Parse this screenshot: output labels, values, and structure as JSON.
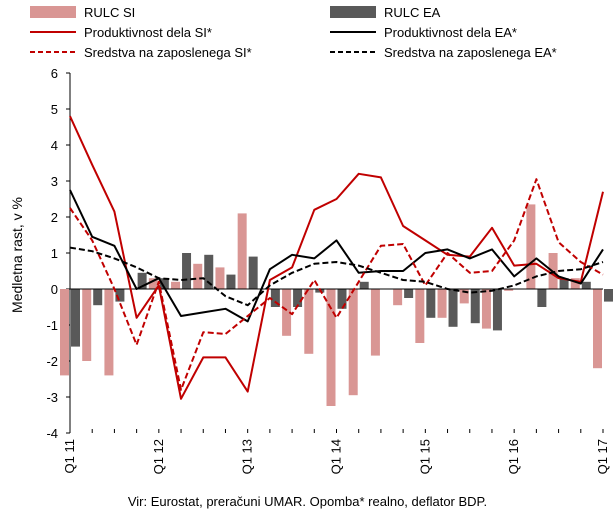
{
  "chart_data": {
    "type": "bar",
    "ylabel": "Medletna rast, v %",
    "ylim": [
      -4,
      6
    ],
    "yticks": [
      -4,
      -3,
      -2,
      -1,
      0,
      1,
      2,
      3,
      4,
      5,
      6
    ],
    "x_tick_labels": [
      "Q1 11",
      "Q1 12",
      "Q1 13",
      "Q1 14",
      "Q1 15",
      "Q1 16",
      "Q1 17"
    ],
    "categories": [
      "Q1 11",
      "Q2 11",
      "Q3 11",
      "Q4 11",
      "Q1 12",
      "Q2 12",
      "Q3 12",
      "Q4 12",
      "Q1 13",
      "Q2 13",
      "Q3 13",
      "Q4 13",
      "Q1 14",
      "Q2 14",
      "Q3 14",
      "Q4 14",
      "Q1 15",
      "Q2 15",
      "Q3 15",
      "Q4 15",
      "Q1 16",
      "Q2 16",
      "Q3 16",
      "Q4 16",
      "Q1 17"
    ],
    "series": [
      {
        "name": "RULC SI",
        "kind": "bar",
        "color": "#d99694",
        "values": [
          -2.4,
          -2.0,
          -2.4,
          0.0,
          0.3,
          0.2,
          0.7,
          0.6,
          2.1,
          0.0,
          -1.3,
          -1.8,
          -3.25,
          -2.95,
          -1.85,
          -0.45,
          -1.5,
          -0.8,
          -0.4,
          -1.1,
          -0.05,
          2.35,
          1.0,
          0.3,
          -2.2
        ]
      },
      {
        "name": "RULC EA",
        "kind": "bar",
        "color": "#595959",
        "values": [
          -1.6,
          -0.45,
          -0.35,
          0.45,
          0.3,
          1.0,
          0.95,
          0.4,
          0.9,
          -0.5,
          -0.5,
          -0.1,
          -0.55,
          0.2,
          0.0,
          -0.25,
          -0.8,
          -1.05,
          -0.95,
          -1.15,
          0.0,
          -0.5,
          0.3,
          0.2,
          -0.35
        ]
      },
      {
        "name": "Produktivnost dela SI*",
        "kind": "line",
        "color": "#c00000",
        "dash": "solid",
        "values": [
          4.8,
          3.45,
          2.15,
          -0.8,
          0.1,
          -3.05,
          -1.9,
          -1.9,
          -2.85,
          0.25,
          0.6,
          2.2,
          2.5,
          3.2,
          3.1,
          1.75,
          1.35,
          0.95,
          0.9,
          1.7,
          0.65,
          0.7,
          0.3,
          0.2,
          2.7
        ]
      },
      {
        "name": "Produktivnost dela EA*",
        "kind": "line",
        "color": "#000000",
        "dash": "solid",
        "values": [
          2.75,
          1.45,
          1.2,
          0.0,
          0.3,
          -0.75,
          -0.65,
          -0.55,
          -0.9,
          0.55,
          0.95,
          0.85,
          1.35,
          0.45,
          0.5,
          0.5,
          1.0,
          1.1,
          0.85,
          1.1,
          0.35,
          0.85,
          0.35,
          0.15,
          1.1
        ]
      },
      {
        "name": "Sredstva na zaposlenega SI*",
        "kind": "line",
        "color": "#c00000",
        "dash": "dashed",
        "values": [
          2.25,
          1.35,
          0.0,
          -1.55,
          0.2,
          -2.8,
          -1.2,
          -1.25,
          -0.75,
          -0.25,
          -0.7,
          0.25,
          -0.8,
          0.2,
          1.2,
          1.25,
          0.1,
          1.0,
          0.45,
          0.5,
          1.35,
          3.05,
          1.3,
          0.75,
          0.4
        ]
      },
      {
        "name": "Sredstva na zaposlenega EA*",
        "kind": "line",
        "color": "#000000",
        "dash": "dashed",
        "values": [
          1.15,
          1.05,
          0.85,
          0.6,
          0.3,
          0.25,
          0.3,
          -0.2,
          -0.45,
          0.1,
          0.45,
          0.7,
          0.75,
          0.65,
          0.45,
          0.25,
          0.2,
          0.0,
          -0.1,
          -0.05,
          0.1,
          0.35,
          0.5,
          0.55,
          0.75
        ]
      }
    ]
  },
  "legend": {
    "items": [
      {
        "label": "RULC SI",
        "kind": "bar",
        "color": "#d99694"
      },
      {
        "label": "RULC EA",
        "kind": "bar",
        "color": "#595959"
      },
      {
        "label": "Produktivnost dela SI*",
        "kind": "line",
        "color": "#c00000",
        "dash": "solid"
      },
      {
        "label": "Produktivnost dela EA*",
        "kind": "line",
        "color": "#000000",
        "dash": "solid"
      },
      {
        "label": "Sredstva na zaposlenega SI*",
        "kind": "line",
        "color": "#c00000",
        "dash": "dashed"
      },
      {
        "label": "Sredstva na zaposlenega EA*",
        "kind": "line",
        "color": "#000000",
        "dash": "dashed"
      }
    ]
  },
  "footer": {
    "source_note": "Vir: Eurostat, preračuni UMAR. Opomba* realno, deflator BDP."
  }
}
